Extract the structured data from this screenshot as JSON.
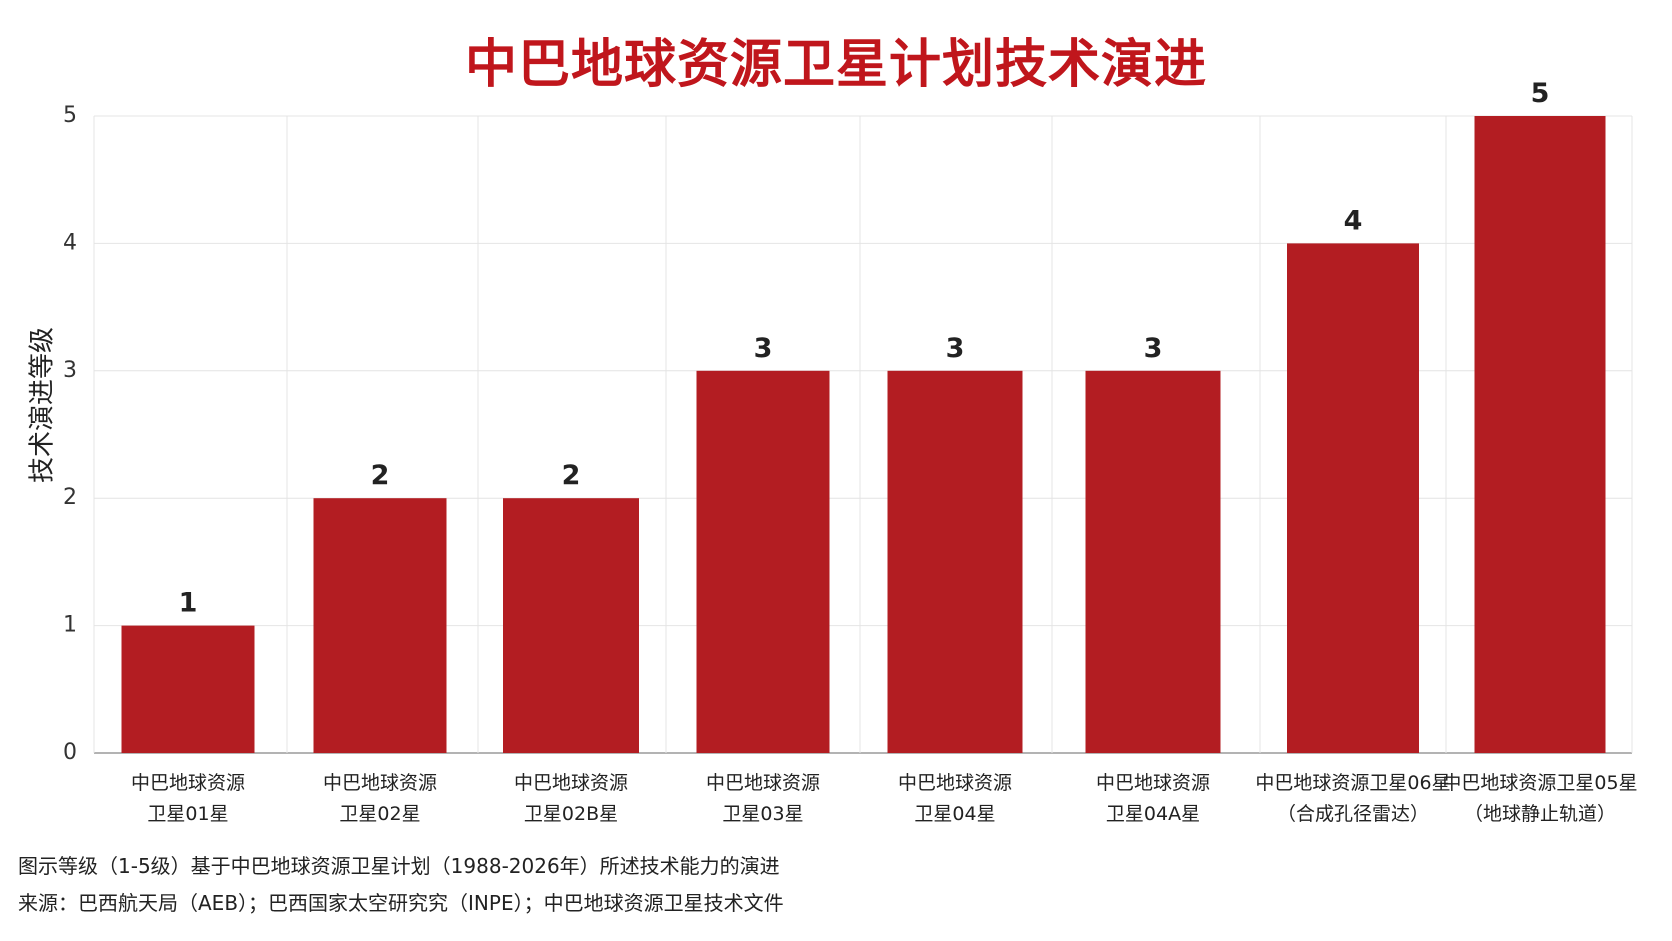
{
  "chart_data": {
    "type": "bar",
    "title": "中巴地球资源卫星计划技术演进",
    "ylabel": "技术演进等级",
    "xlabel": "",
    "ylim": [
      0,
      5
    ],
    "yticks": [
      0,
      1,
      2,
      3,
      4,
      5
    ],
    "grid": true,
    "bar_color": "#b31d22",
    "categories": [
      [
        "中巴地球资源",
        "卫星01星"
      ],
      [
        "中巴地球资源",
        "卫星02星"
      ],
      [
        "中巴地球资源",
        "卫星02B星"
      ],
      [
        "中巴地球资源",
        "卫星03星"
      ],
      [
        "中巴地球资源",
        "卫星04星"
      ],
      [
        "中巴地球资源",
        "卫星04A星"
      ],
      [
        "中巴地球资源卫星06星",
        "（合成孔径雷达）"
      ],
      [
        "中巴地球资源卫星05星",
        "（地球静止轨道）"
      ]
    ],
    "values": [
      1,
      2,
      2,
      3,
      3,
      3,
      4,
      5
    ]
  },
  "notes": {
    "line1": "图示等级（1-5级）基于中巴地球资源卫星计划（1988-2026年）所述技术能力的演进",
    "line2": "来源：巴西航天局（AEB）；巴西国家太空研究究（INPE）；中巴地球资源卫星技术文件"
  }
}
